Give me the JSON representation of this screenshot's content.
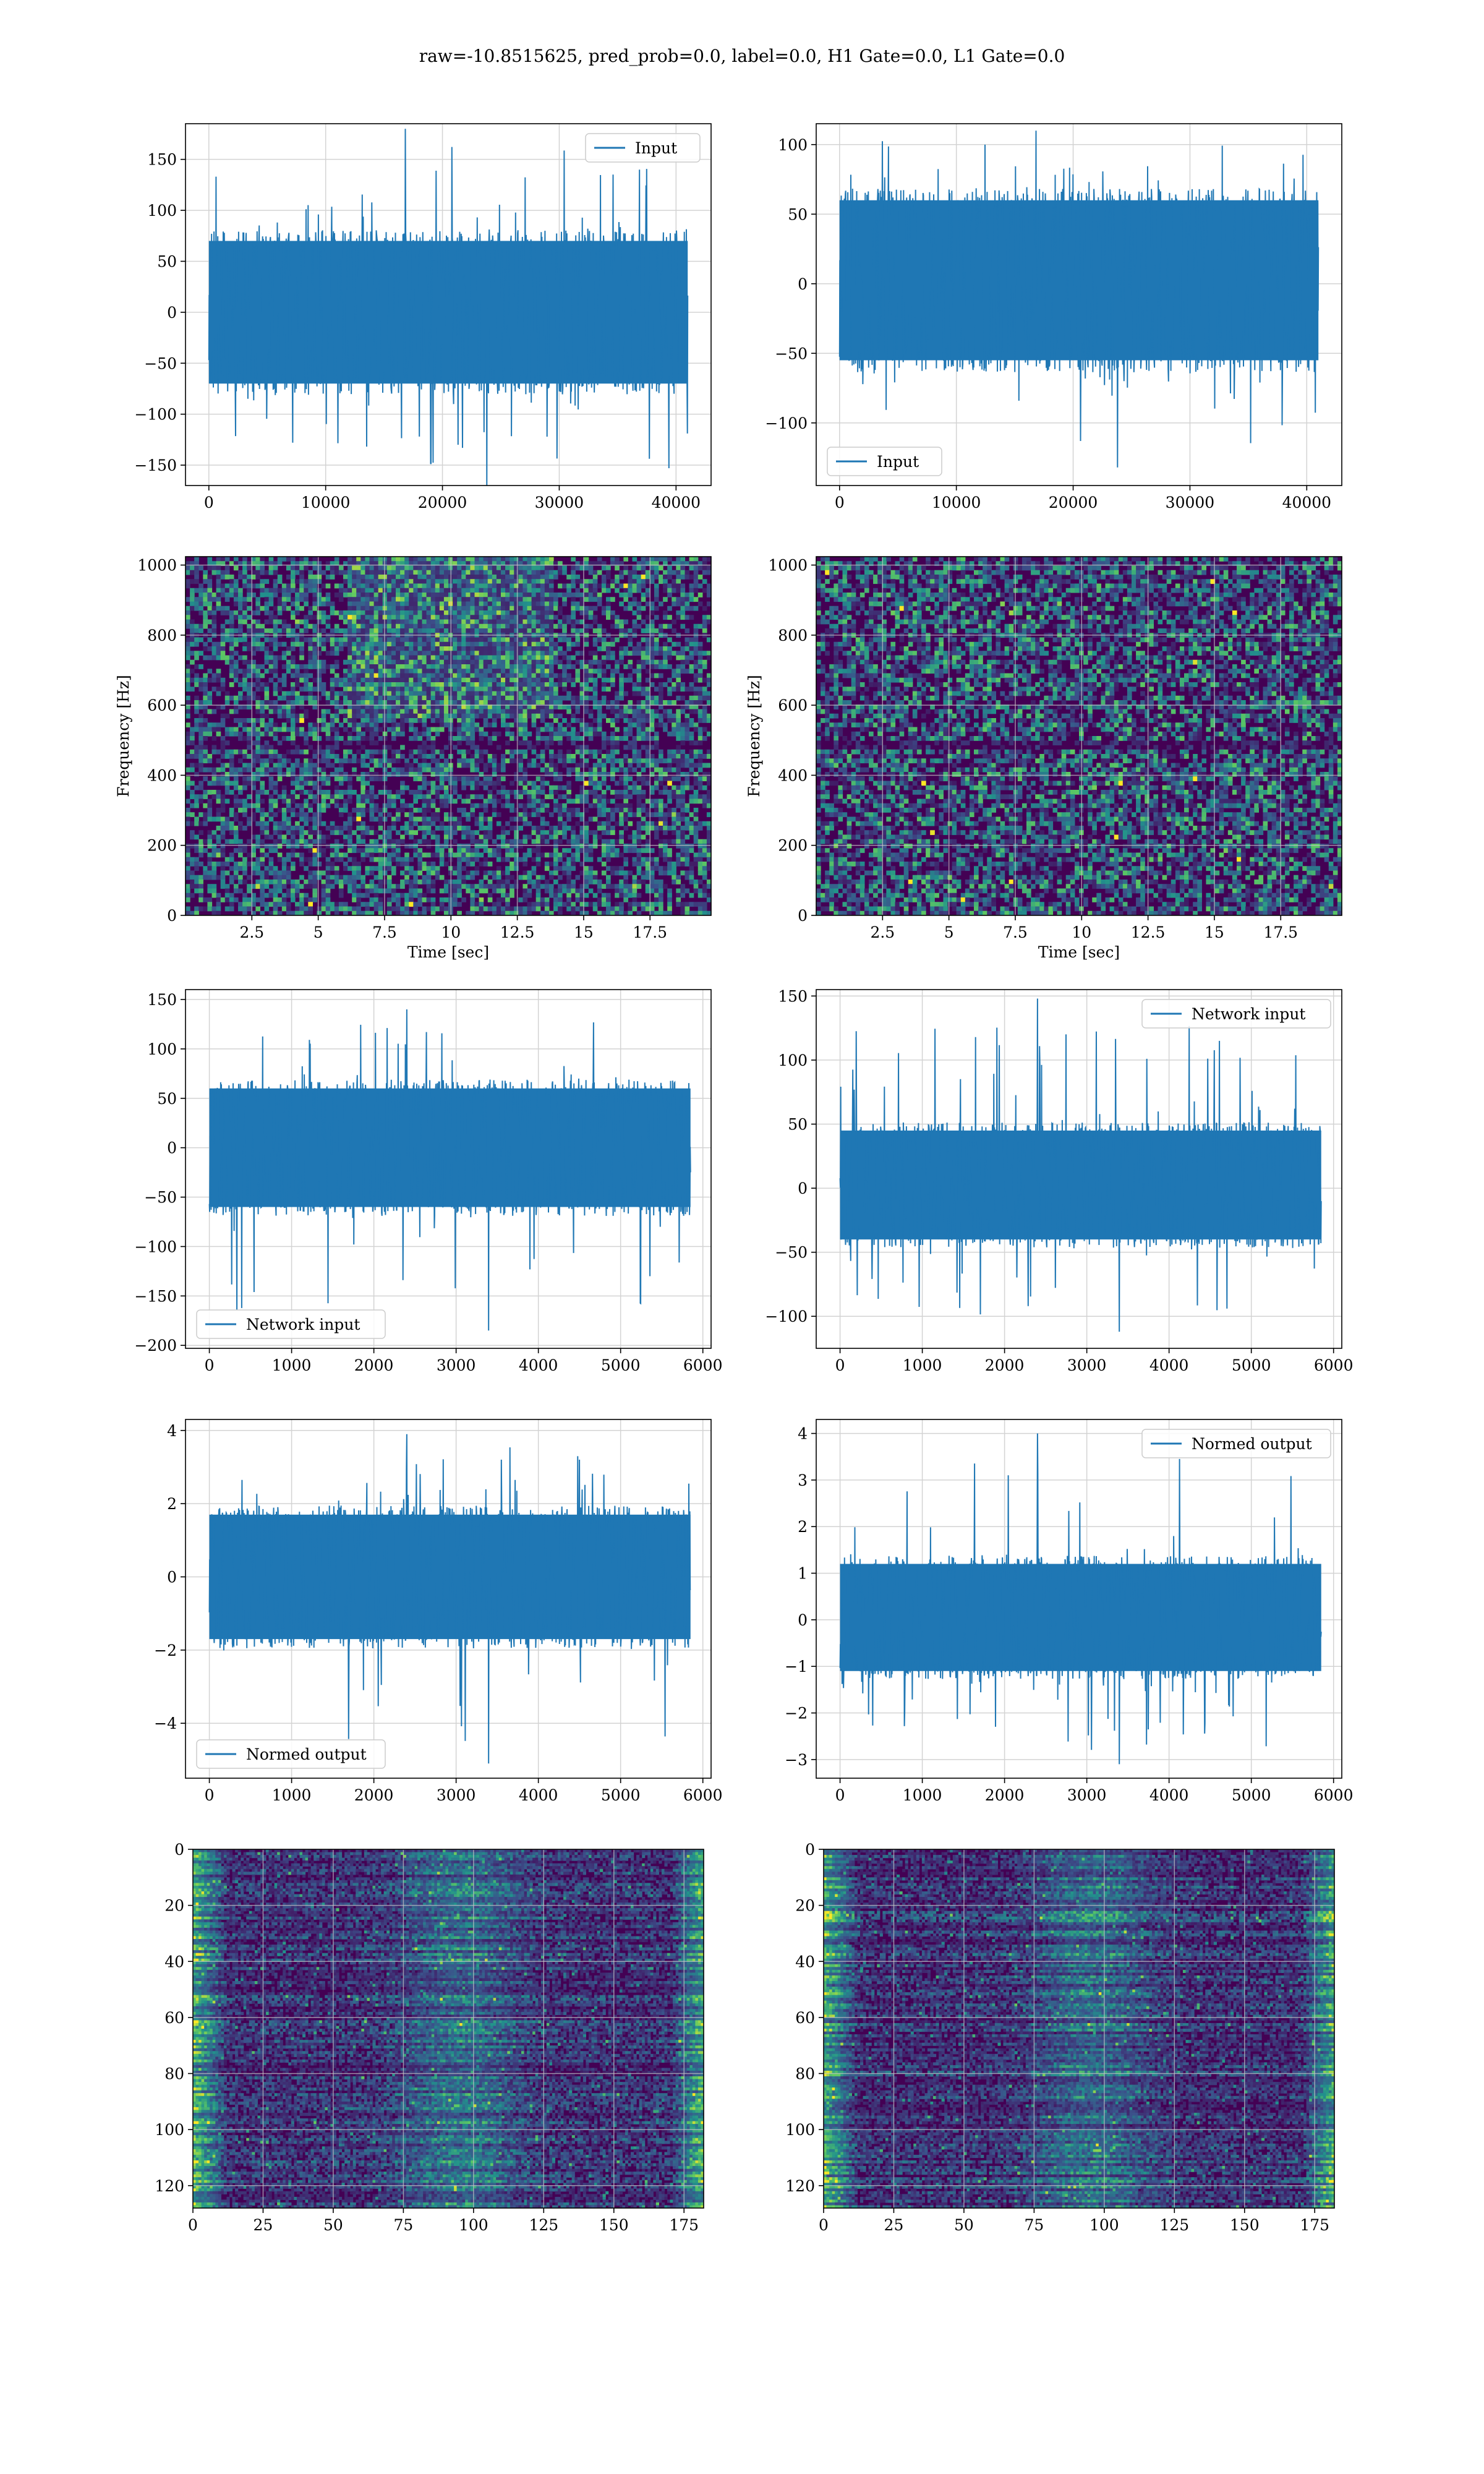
{
  "suptitle": "raw=-10.8515625, pred_prob=0.0, label=0.0, H1 Gate=0.0, L1 Gate=0.0",
  "colors": {
    "line": "#1f77b4",
    "grid": "#d3d3d3",
    "spine": "#000000",
    "viridis_low": "#440154",
    "viridis_mid": "#21918c",
    "viridis_high": "#fde725"
  },
  "chart_data": [
    {
      "id": "input_h1",
      "type": "line",
      "legend": "Input",
      "legend_loc": "upper right",
      "xlim": [
        -2000,
        43000
      ],
      "ylim": [
        -170,
        185
      ],
      "xticks": [
        0,
        10000,
        20000,
        30000,
        40000
      ],
      "yticks": [
        -150,
        -100,
        -50,
        0,
        50,
        100,
        150
      ],
      "x_range": [
        0,
        41000
      ],
      "band": [
        -70,
        70
      ],
      "spike_max": 180,
      "spike_min": -170
    },
    {
      "id": "input_l1",
      "type": "line",
      "legend": "Input",
      "legend_loc": "lower left",
      "xlim": [
        -2000,
        43000
      ],
      "ylim": [
        -145,
        115
      ],
      "xticks": [
        0,
        10000,
        20000,
        30000,
        40000
      ],
      "yticks": [
        -100,
        -50,
        0,
        50,
        100
      ],
      "x_range": [
        0,
        41000
      ],
      "band": [
        -55,
        60
      ],
      "spike_max": 110,
      "spike_min": -132
    },
    {
      "id": "spec_h1",
      "type": "heatmap",
      "xlabel": "Time [sec]",
      "ylabel": "Frequency [Hz]",
      "xlim": [
        0,
        19.8
      ],
      "ylim": [
        0,
        1024
      ],
      "xticks": [
        2.5,
        5.0,
        7.5,
        10.0,
        12.5,
        15.0,
        17.5
      ],
      "yticks": [
        0,
        200,
        400,
        600,
        800,
        1000
      ],
      "seed": 11
    },
    {
      "id": "spec_l1",
      "type": "heatmap",
      "xlabel": "Time [sec]",
      "ylabel": "Frequency [Hz]",
      "xlim": [
        0,
        19.8
      ],
      "ylim": [
        0,
        1024
      ],
      "xticks": [
        2.5,
        5.0,
        7.5,
        10.0,
        12.5,
        15.0,
        17.5
      ],
      "yticks": [
        0,
        200,
        400,
        600,
        800,
        1000
      ],
      "seed": 23
    },
    {
      "id": "net_h1",
      "type": "line",
      "legend": "Network input",
      "legend_loc": "lower left",
      "xlim": [
        -290,
        6100
      ],
      "ylim": [
        -203,
        160
      ],
      "xticks": [
        0,
        1000,
        2000,
        3000,
        4000,
        5000,
        6000
      ],
      "yticks": [
        -200,
        -150,
        -100,
        -50,
        0,
        50,
        100,
        150
      ],
      "x_range": [
        0,
        5850
      ],
      "band": [
        -60,
        60
      ],
      "spike_max": 140,
      "spike_min": -185
    },
    {
      "id": "net_l1",
      "type": "line",
      "legend": "Network input",
      "legend_loc": "upper right",
      "xlim": [
        -290,
        6100
      ],
      "ylim": [
        -125,
        155
      ],
      "xticks": [
        0,
        1000,
        2000,
        3000,
        4000,
        5000,
        6000
      ],
      "yticks": [
        -100,
        -50,
        0,
        50,
        100,
        150
      ],
      "x_range": [
        0,
        5850
      ],
      "band": [
        -40,
        45
      ],
      "spike_max": 148,
      "spike_min": -112
    },
    {
      "id": "norm_h1",
      "type": "line",
      "legend": "Normed output",
      "legend_loc": "lower left",
      "xlim": [
        -290,
        6100
      ],
      "ylim": [
        -5.5,
        4.3
      ],
      "xticks": [
        0,
        1000,
        2000,
        3000,
        4000,
        5000,
        6000
      ],
      "yticks": [
        -4,
        -2,
        0,
        2,
        4
      ],
      "x_range": [
        0,
        5850
      ],
      "band": [
        -1.7,
        1.7
      ],
      "spike_max": 3.9,
      "spike_min": -5.1
    },
    {
      "id": "norm_l1",
      "type": "line",
      "legend": "Normed output",
      "legend_loc": "upper right",
      "xlim": [
        -290,
        6100
      ],
      "ylim": [
        -3.4,
        4.3
      ],
      "xticks": [
        0,
        1000,
        2000,
        3000,
        4000,
        5000,
        6000
      ],
      "yticks": [
        -3,
        -2,
        -1,
        0,
        1,
        2,
        3,
        4
      ],
      "x_range": [
        0,
        5850
      ],
      "band": [
        -1.1,
        1.2
      ],
      "spike_max": 4.0,
      "spike_min": -3.1
    },
    {
      "id": "feat_h1",
      "type": "heatmap",
      "inverted_y": true,
      "xlim": [
        0,
        182
      ],
      "ylim": [
        0,
        128
      ],
      "xticks": [
        0,
        25,
        50,
        75,
        100,
        125,
        150,
        175
      ],
      "yticks": [
        0,
        20,
        40,
        60,
        80,
        100,
        120
      ],
      "seed": 5
    },
    {
      "id": "feat_l1",
      "type": "heatmap",
      "inverted_y": true,
      "xlim": [
        0,
        182
      ],
      "ylim": [
        0,
        128
      ],
      "xticks": [
        0,
        25,
        50,
        75,
        100,
        125,
        150,
        175
      ],
      "yticks": [
        0,
        20,
        40,
        60,
        80,
        100,
        120
      ],
      "seed": 9
    }
  ]
}
